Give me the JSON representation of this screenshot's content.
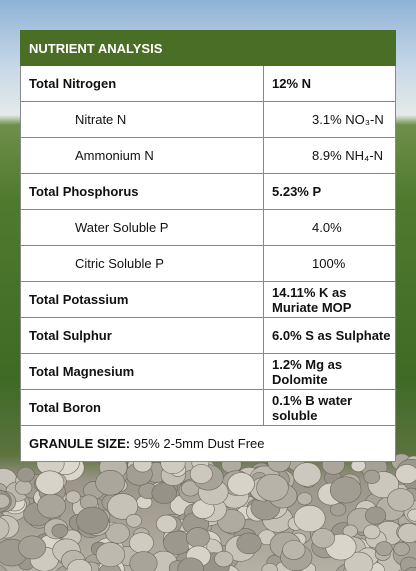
{
  "table": {
    "title": "NUTRIENT ANALYSIS",
    "rows": [
      {
        "name": "Total Nitrogen",
        "value": "12% N",
        "components": [
          {
            "name": "Nitrate N",
            "value": "3.1% NO₃-N"
          },
          {
            "name": "Ammonium N",
            "value": "8.9% NH₄-N"
          }
        ]
      },
      {
        "name": "Total Phosphorus",
        "value": "5.23% P",
        "components": [
          {
            "name": "Water Soluble P",
            "value": "4.0%"
          },
          {
            "name": "Citric Soluble P",
            "value": "100%"
          }
        ]
      },
      {
        "name": "Total Potassium",
        "value": "14.11% K as Muriate MOP"
      },
      {
        "name": "Total Sulphur",
        "value": "6.0% S as Sulphate"
      },
      {
        "name": "Total Magnesium",
        "value": "1.2% Mg as Dolomite"
      },
      {
        "name": "Total Boron",
        "value": "0.1% B water soluble"
      }
    ],
    "footer": {
      "label": "GRANULE SIZE:",
      "value": "95% 2-5mm Dust Free"
    }
  }
}
